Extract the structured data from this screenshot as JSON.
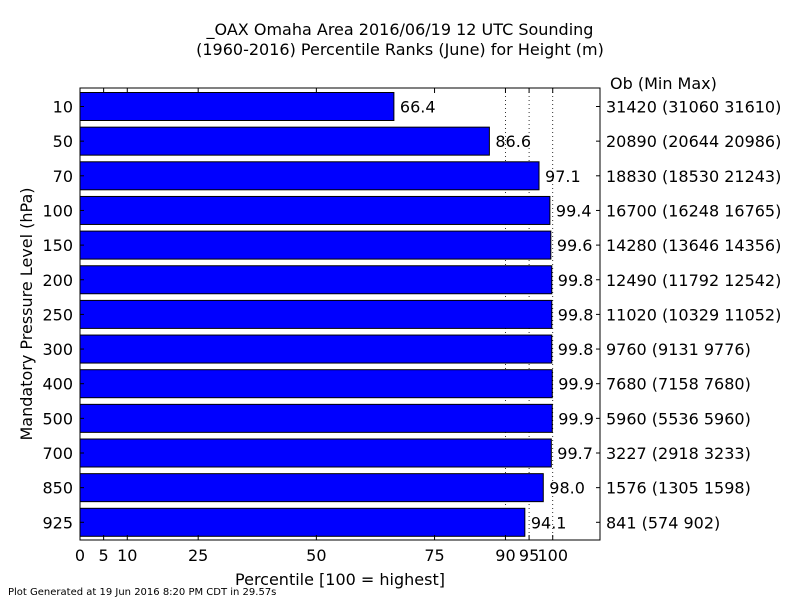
{
  "chart_data": {
    "type": "bar",
    "orientation": "horizontal",
    "title": "_OAX Omaha Area  2016/06/19 12 UTC Sounding",
    "subtitle": "(1960-2016) Percentile Ranks (June) for Height (m)",
    "xlabel": "Percentile [100 = highest]",
    "ylabel": "Mandatory Pressure Level (hPa)",
    "xlim": [
      0,
      110
    ],
    "x_ticks": [
      0,
      5,
      10,
      25,
      50,
      75,
      90,
      95,
      100
    ],
    "x_tick_labels": [
      "0",
      "5",
      "10",
      "25",
      "50",
      "75",
      "90",
      "95",
      "100"
    ],
    "dotted_grid_at": [
      90,
      95,
      100
    ],
    "bar_color": "#0000ff",
    "categories": [
      "10",
      "50",
      "70",
      "100",
      "150",
      "200",
      "250",
      "300",
      "400",
      "500",
      "700",
      "850",
      "925"
    ],
    "values": [
      66.4,
      86.6,
      97.1,
      99.4,
      99.6,
      99.8,
      99.8,
      99.8,
      99.9,
      99.9,
      99.7,
      98.0,
      94.1
    ],
    "value_labels": [
      "66.4",
      "86.6",
      "97.1",
      "99.4",
      "99.6",
      "99.8",
      "99.8",
      "99.8",
      "99.9",
      "99.9",
      "99.7",
      "98.0",
      "94.1"
    ],
    "right_header": "Ob  (Min  Max)",
    "right_labels": [
      "31420 (31060 31610)",
      "20890 (20644 20986)",
      "18830 (18530 21243)",
      "16700 (16248 16765)",
      "14280 (13646 14356)",
      "12490 (11792 12542)",
      "11020 (10329 11052)",
      "9760 (9131 9776)",
      "7680 (7158 7680)",
      "5960 (5536 5960)",
      "3227 (2918 3233)",
      "1576 (1305 1598)",
      "841 (574 902)"
    ],
    "grid": "dotted at 90/95/100",
    "legend": "none"
  },
  "footer": "Plot Generated at 19 Jun 2016 8:20 PM CDT in 29.57s"
}
